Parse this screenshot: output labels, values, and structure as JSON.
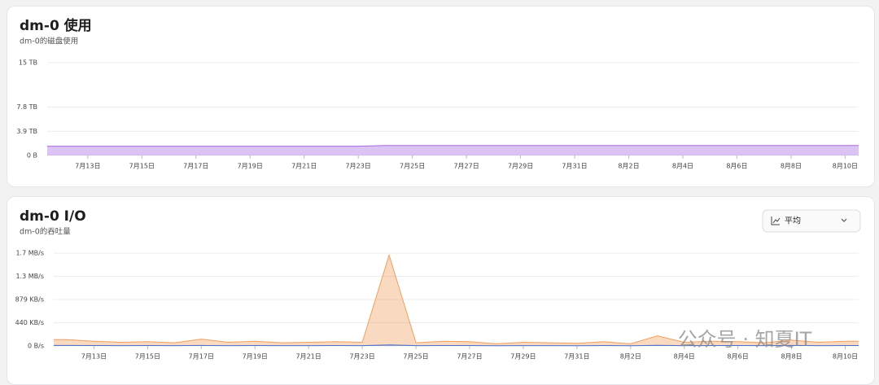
{
  "chart_data": [
    {
      "type": "area",
      "title": "dm-0 使用",
      "subtitle": "dm-0的磁盘使用",
      "categories": [
        null,
        "7月13日",
        null,
        "7月15日",
        null,
        "7月17日",
        null,
        "7月19日",
        null,
        "7月21日",
        null,
        "7月23日",
        null,
        "7月25日",
        null,
        "7月27日",
        null,
        "7月29日",
        null,
        "7月31日",
        null,
        "8月2日",
        null,
        "8月4日",
        null,
        "8月6日",
        null,
        "8月8日",
        null,
        "8月10日"
      ],
      "series": [
        {
          "color": "#a66be0",
          "values": [
            1.5,
            1.5,
            1.5,
            1.5,
            1.5,
            1.5,
            1.5,
            1.5,
            1.5,
            1.5,
            1.5,
            1.5,
            1.6,
            1.6,
            1.6,
            1.6,
            1.6,
            1.6,
            1.6,
            1.6,
            1.6,
            1.6,
            1.6,
            1.6,
            1.6,
            1.6,
            1.6,
            1.6,
            1.6,
            1.6
          ]
        }
      ],
      "ylim": [
        0,
        15
      ],
      "yticks": [
        {
          "value": 0,
          "label": "0 B"
        },
        {
          "value": 3.9,
          "label": "3.9 TB"
        },
        {
          "value": 7.8,
          "label": "7.8 TB"
        },
        {
          "value": 15,
          "label": "15 TB"
        }
      ],
      "grid": true
    },
    {
      "type": "area",
      "title": "dm-0 I/O",
      "subtitle": "dm-0的吞吐量",
      "categories": [
        null,
        "7月13日",
        null,
        "7月15日",
        null,
        "7月17日",
        null,
        "7月19日",
        null,
        "7月21日",
        null,
        "7月23日",
        null,
        "7月25日",
        null,
        "7月27日",
        null,
        "7月29日",
        null,
        "7月31日",
        null,
        "8月2日",
        null,
        "8月4日",
        null,
        "8月6日",
        null,
        "8月8日",
        null,
        "8月10日"
      ],
      "series": [
        {
          "color": "#f0a060",
          "values": [
            120,
            90,
            70,
            80,
            60,
            130,
            70,
            90,
            60,
            70,
            80,
            70,
            1720,
            60,
            90,
            80,
            40,
            70,
            60,
            50,
            80,
            40,
            190,
            70,
            90,
            80,
            60,
            110,
            70,
            90
          ]
        },
        {
          "color": "#4a6fd0",
          "values": [
            10,
            8,
            6,
            8,
            6,
            10,
            6,
            8,
            6,
            6,
            8,
            6,
            20,
            6,
            8,
            8,
            4,
            6,
            6,
            4,
            8,
            4,
            12,
            6,
            8,
            8,
            6,
            10,
            6,
            8
          ]
        }
      ],
      "ylim": [
        0,
        1758
      ],
      "yticks": [
        {
          "value": 0,
          "label": "0 B/s"
        },
        {
          "value": 440,
          "label": "440 KB/s"
        },
        {
          "value": 879,
          "label": "879 KB/s"
        },
        {
          "value": 1318,
          "label": "1.3 MB/s"
        },
        {
          "value": 1758,
          "label": "1.7 MB/s"
        }
      ],
      "grid": true
    }
  ],
  "controls": {
    "aggregate": "平均"
  },
  "watermark": "公众号 · 知夏IT"
}
